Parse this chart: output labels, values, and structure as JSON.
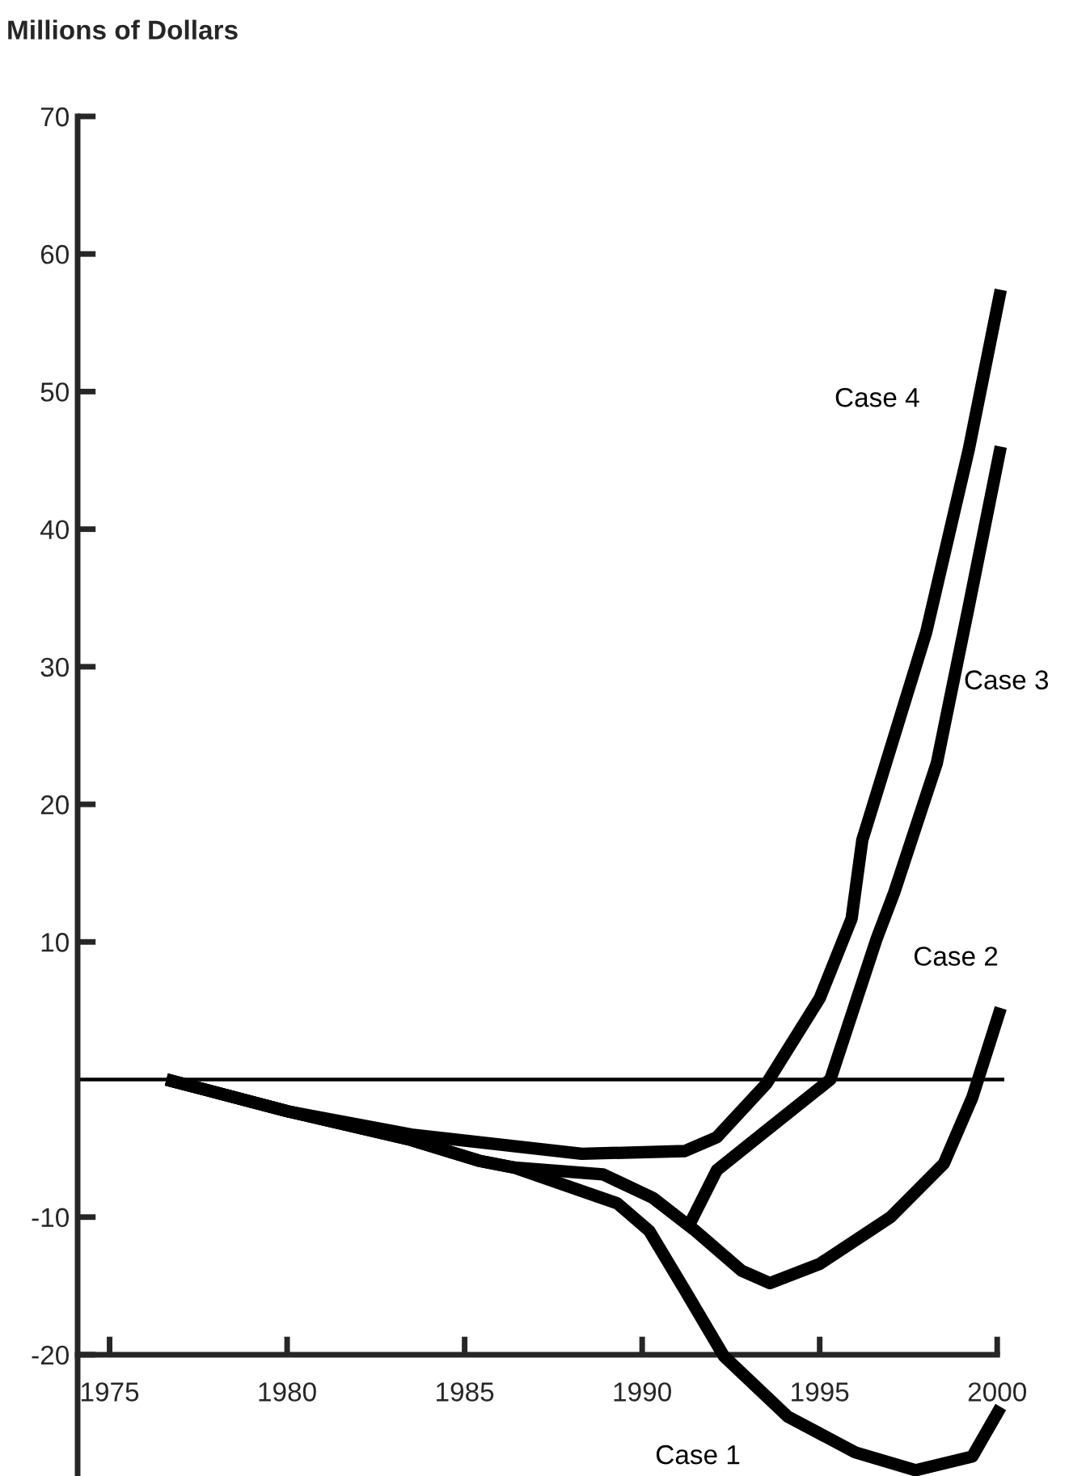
{
  "chart_data": {
    "type": "line",
    "ylabel": "Millions of Dollars",
    "xlim": [
      1974.1,
      2000.2
    ],
    "xticks": [
      1975,
      1980,
      1985,
      1990,
      1995,
      2000
    ],
    "ylim": [
      -28.7,
      70
    ],
    "yticks": [
      -20,
      -10,
      10,
      20,
      30,
      40,
      50,
      60,
      70
    ],
    "grid": false,
    "legend": false,
    "marker": "none",
    "line_style": "solid",
    "ref_lines": [
      {
        "axis": "y",
        "value": 0,
        "color": "#000000"
      }
    ],
    "series": [
      {
        "name": "Case 1",
        "color": "#000000",
        "x": [
          1976.6,
          1980,
          1983.5,
          1985.4,
          1986.4,
          1989.3,
          1990.2,
          1991.2,
          1992.3,
          1994.1,
          1996.0,
          1997.7,
          1999.3,
          2000.1
        ],
        "values": [
          0,
          -2.3,
          -4.4,
          -5.9,
          -6.4,
          -9,
          -11,
          -15.3,
          -20.1,
          -24.5,
          -27.1,
          -28.4,
          -27.4,
          -23.8
        ]
      },
      {
        "name": "Case 2",
        "color": "#000000",
        "x": [
          1976.6,
          1980,
          1983.5,
          1985.4,
          1986.4,
          1988.9,
          1990.3,
          1991.5,
          1992.8,
          1993.6,
          1995.0,
          1997.0,
          1998.5,
          1999.3,
          2000.1
        ],
        "values": [
          0,
          -2.3,
          -4.4,
          -5.9,
          -6.4,
          -6.9,
          -8.6,
          -11,
          -13.9,
          -14.8,
          -13.4,
          -10,
          -6.1,
          -1.3,
          5.2
        ]
      },
      {
        "name": "Case 3",
        "color": "#000000",
        "x": [
          1991.3,
          1992.1,
          1993.5,
          1995.3,
          1996.6,
          1997.1,
          1998.3,
          1999.2,
          2000.1
        ],
        "values": [
          -10.7,
          -6.6,
          -3.7,
          0,
          10.2,
          13.6,
          23,
          34.4,
          46
        ]
      },
      {
        "name": "Case 4",
        "color": "#000000",
        "x": [
          1976.6,
          1980,
          1983.5,
          1988.3,
          1991.2,
          1992.1,
          1993.5,
          1995.0,
          1995.9,
          1996.2,
          1998.0,
          1999.2,
          2000.1
        ],
        "values": [
          0,
          -2.3,
          -4,
          -5.4,
          -5.2,
          -4.2,
          -0.3,
          5.9,
          11.7,
          17.4,
          32.5,
          45.8,
          57.4
        ]
      }
    ]
  }
}
